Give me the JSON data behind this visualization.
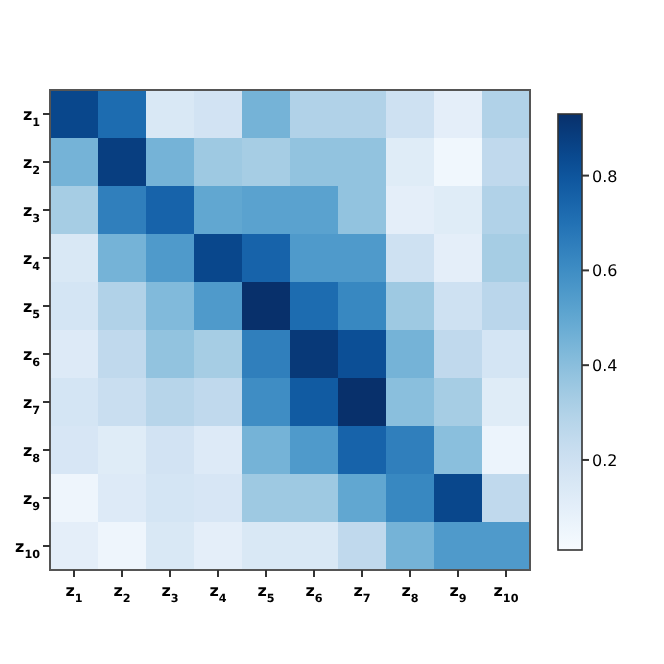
{
  "chart_data": {
    "type": "heatmap",
    "categories": [
      "z$_{1}$",
      "z$_{2}$",
      "z$_{3}$",
      "z$_{4}$",
      "z$_{5}$",
      "z$_{6}$",
      "z$_{7}$",
      "z$_{8}$",
      "z$_{9}$",
      "z$_{10}$"
    ],
    "y_categories": [
      "z$_{1}$",
      "z$_{2}$",
      "z$_{3}$",
      "z$_{4}$",
      "z$_{5}$",
      "z$_{6}$",
      "z$_{7}$",
      "z$_{8}$",
      "z$_{9}$",
      "z$_{10}$"
    ],
    "cells": [
      [
        0.85,
        0.72,
        0.15,
        0.18,
        0.45,
        0.3,
        0.3,
        0.2,
        0.1,
        0.3
      ],
      [
        0.45,
        0.88,
        0.45,
        0.35,
        0.33,
        0.38,
        0.38,
        0.12,
        0.04,
        0.25
      ],
      [
        0.33,
        0.65,
        0.75,
        0.5,
        0.52,
        0.52,
        0.38,
        0.1,
        0.12,
        0.3
      ],
      [
        0.15,
        0.45,
        0.55,
        0.85,
        0.75,
        0.55,
        0.55,
        0.2,
        0.1,
        0.33
      ],
      [
        0.17,
        0.3,
        0.42,
        0.55,
        0.93,
        0.72,
        0.62,
        0.35,
        0.2,
        0.27
      ],
      [
        0.13,
        0.25,
        0.38,
        0.33,
        0.65,
        0.9,
        0.82,
        0.45,
        0.25,
        0.17
      ],
      [
        0.17,
        0.22,
        0.28,
        0.25,
        0.6,
        0.78,
        0.93,
        0.4,
        0.33,
        0.12
      ],
      [
        0.16,
        0.12,
        0.18,
        0.13,
        0.45,
        0.55,
        0.75,
        0.65,
        0.4,
        0.06
      ],
      [
        0.05,
        0.13,
        0.17,
        0.16,
        0.35,
        0.35,
        0.5,
        0.62,
        0.85,
        0.25
      ],
      [
        0.1,
        0.05,
        0.15,
        0.1,
        0.15,
        0.15,
        0.25,
        0.45,
        0.55,
        0.55
      ]
    ],
    "clim": [
      0.01,
      0.93
    ],
    "cticks": [
      0.2,
      0.4,
      0.6,
      0.8
    ]
  }
}
